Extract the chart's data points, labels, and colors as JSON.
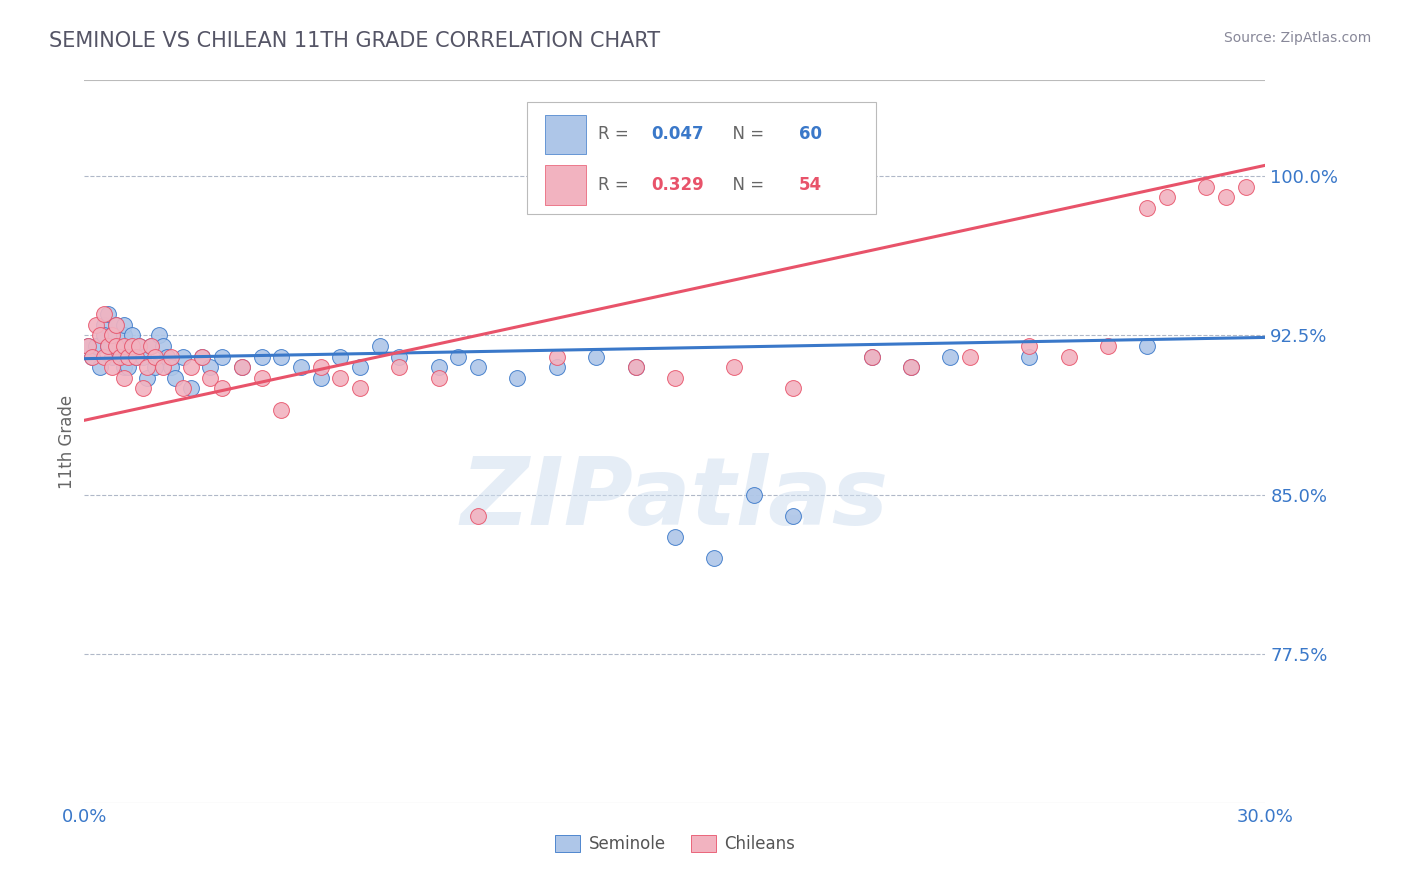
{
  "title": "SEMINOLE VS CHILEAN 11TH GRADE CORRELATION CHART",
  "source_text": "Source: ZipAtlas.com",
  "ylabel": "11th Grade",
  "xlim": [
    0.0,
    30.0
  ],
  "ylim": [
    70.5,
    104.5
  ],
  "yticks": [
    77.5,
    85.0,
    92.5,
    100.0
  ],
  "ytick_labels": [
    "77.5%",
    "85.0%",
    "92.5%",
    "100.0%"
  ],
  "xtick_labels": [
    "0.0%",
    "30.0%"
  ],
  "seminole_color": "#aec6e8",
  "chilean_color": "#f2b3c0",
  "seminole_line_color": "#3a78c9",
  "chilean_line_color": "#e8536a",
  "legend_label_seminole": "Seminole",
  "legend_label_chilean": "Chileans",
  "watermark_text": "ZIPatlas",
  "seminole_R": 0.047,
  "seminole_N": 60,
  "chilean_R": 0.329,
  "chilean_N": 54,
  "seminole_x": [
    0.1,
    0.2,
    0.3,
    0.4,
    0.5,
    0.5,
    0.6,
    0.6,
    0.7,
    0.7,
    0.8,
    0.8,
    0.9,
    0.9,
    1.0,
    1.0,
    1.0,
    1.1,
    1.2,
    1.3,
    1.4,
    1.5,
    1.6,
    1.7,
    1.8,
    1.9,
    2.0,
    2.1,
    2.2,
    2.3,
    2.5,
    2.7,
    3.0,
    3.2,
    3.5,
    4.0,
    4.5,
    5.0,
    5.5,
    6.0,
    6.5,
    7.0,
    7.5,
    8.0,
    9.0,
    9.5,
    10.0,
    11.0,
    12.0,
    13.0,
    14.0,
    15.0,
    16.0,
    17.0,
    18.0,
    20.0,
    21.0,
    22.0,
    24.0,
    27.0
  ],
  "seminole_y": [
    92.0,
    91.5,
    92.0,
    91.0,
    93.0,
    92.5,
    92.0,
    93.5,
    91.5,
    92.5,
    93.0,
    92.0,
    91.5,
    92.0,
    91.0,
    92.5,
    93.0,
    91.0,
    92.5,
    91.5,
    92.0,
    91.5,
    90.5,
    92.0,
    91.0,
    92.5,
    92.0,
    91.5,
    91.0,
    90.5,
    91.5,
    90.0,
    91.5,
    91.0,
    91.5,
    91.0,
    91.5,
    91.5,
    91.0,
    90.5,
    91.5,
    91.0,
    92.0,
    91.5,
    91.0,
    91.5,
    91.0,
    90.5,
    91.0,
    91.5,
    91.0,
    83.0,
    82.0,
    85.0,
    84.0,
    91.5,
    91.0,
    91.5,
    91.5,
    92.0
  ],
  "chilean_x": [
    0.1,
    0.2,
    0.3,
    0.4,
    0.5,
    0.5,
    0.6,
    0.7,
    0.7,
    0.8,
    0.8,
    0.9,
    1.0,
    1.0,
    1.1,
    1.2,
    1.3,
    1.4,
    1.5,
    1.6,
    1.7,
    1.8,
    2.0,
    2.2,
    2.5,
    2.7,
    3.0,
    3.2,
    3.5,
    4.0,
    4.5,
    5.0,
    6.0,
    6.5,
    7.0,
    8.0,
    9.0,
    10.0,
    12.0,
    14.0,
    15.0,
    16.5,
    18.0,
    20.0,
    21.0,
    22.5,
    24.0,
    25.0,
    26.0,
    27.0,
    27.5,
    28.5,
    29.0,
    29.5
  ],
  "chilean_y": [
    92.0,
    91.5,
    93.0,
    92.5,
    93.5,
    91.5,
    92.0,
    92.5,
    91.0,
    92.0,
    93.0,
    91.5,
    92.0,
    90.5,
    91.5,
    92.0,
    91.5,
    92.0,
    90.0,
    91.0,
    92.0,
    91.5,
    91.0,
    91.5,
    90.0,
    91.0,
    91.5,
    90.5,
    90.0,
    91.0,
    90.5,
    89.0,
    91.0,
    90.5,
    90.0,
    91.0,
    90.5,
    84.0,
    91.5,
    91.0,
    90.5,
    91.0,
    90.0,
    91.5,
    91.0,
    91.5,
    92.0,
    91.5,
    92.0,
    98.5,
    99.0,
    99.5,
    99.0,
    99.5
  ],
  "seminole_trend_x": [
    0.0,
    30.0
  ],
  "seminole_trend_y": [
    91.4,
    92.4
  ],
  "chilean_trend_x": [
    0.0,
    30.0
  ],
  "chilean_trend_y": [
    88.5,
    100.5
  ]
}
